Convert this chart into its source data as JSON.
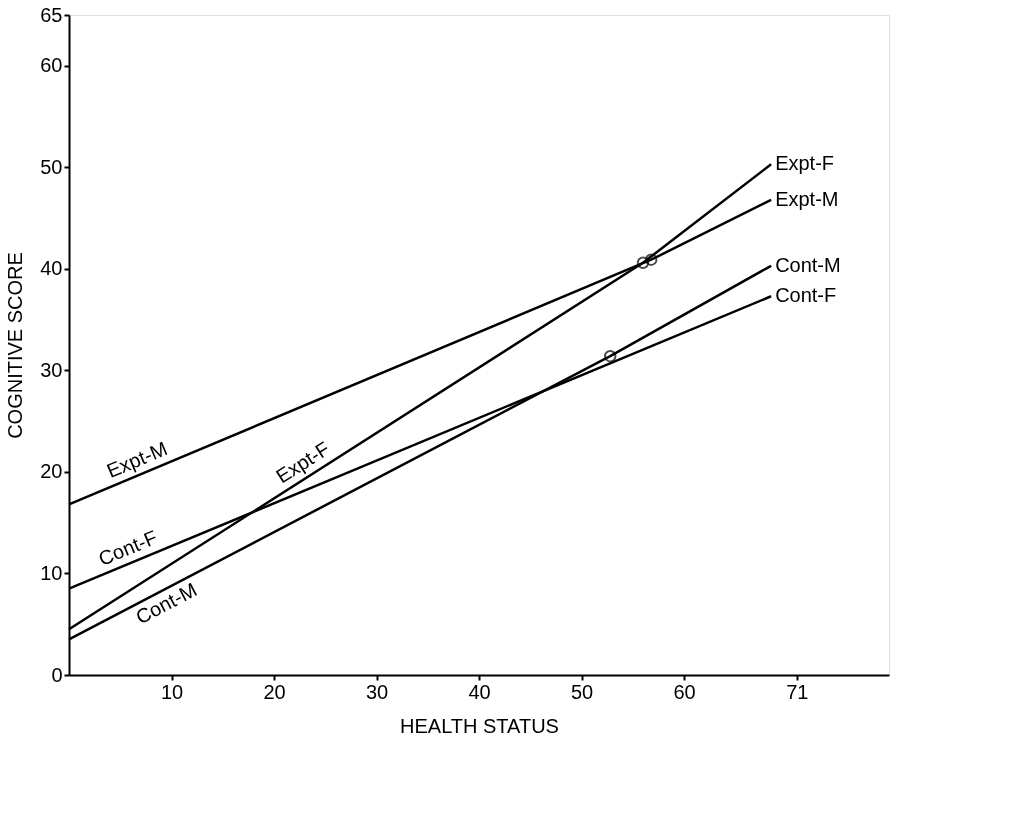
{
  "chart_data": {
    "type": "line",
    "xlabel": "HEALTH STATUS",
    "ylabel": "COGNITIVE SCORE",
    "xlim": [
      0,
      80
    ],
    "ylim": [
      0,
      65
    ],
    "xticks": [
      10,
      20,
      30,
      40,
      50,
      60,
      71
    ],
    "yticks": [
      0,
      10,
      20,
      30,
      40,
      50,
      60,
      65
    ],
    "grid": false,
    "legend": false,
    "marker": "none",
    "line_style": "solid",
    "series": [
      {
        "name": "Expt-F",
        "color": "#000000",
        "x": [
          0,
          56,
          68.5
        ],
        "values": [
          4.5,
          40.6,
          50.3
        ]
      },
      {
        "name": "Expt-M",
        "color": "#000000",
        "x": [
          0,
          56.8,
          68.5
        ],
        "values": [
          16.8,
          40.9,
          46.8
        ]
      },
      {
        "name": "Cont-M",
        "color": "#000000",
        "x": [
          0,
          52.8,
          68.5
        ],
        "values": [
          3.5,
          31.4,
          40.3
        ]
      },
      {
        "name": "Cont-F",
        "color": "#000000",
        "x": [
          0,
          68.5
        ],
        "values": [
          8.5,
          37.3
        ]
      },
      {
        "type": "scatter",
        "marker": "circle",
        "color": "#000000",
        "x": [
          52.8,
          56,
          56.8
        ],
        "values": [
          31.4,
          40.6,
          40.9
        ]
      }
    ],
    "annotations": [
      {
        "text": "Expt-M",
        "x": 7.2,
        "y": 19.85
      },
      {
        "text": "Cont-F",
        "x": 6.3,
        "y": 11.15
      },
      {
        "text": "Expt-F",
        "x": 23.6,
        "y": 19.7
      },
      {
        "text": "Cont-M",
        "x": 8.9,
        "y": 8.2
      }
    ]
  }
}
